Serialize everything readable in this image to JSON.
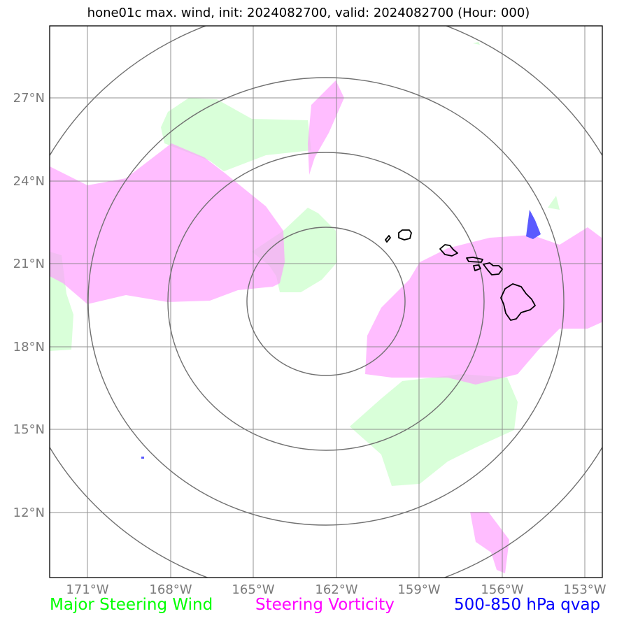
{
  "title": "hone01c max. wind, init: 2024082700, valid: 2024082700 (Hour: 000)",
  "axes": {
    "lat_labels": [
      "27°N",
      "24°N",
      "21°N",
      "18°N",
      "15°N",
      "12°N"
    ],
    "lon_labels": [
      "171°W",
      "168°W",
      "165°W",
      "162°W",
      "159°W",
      "156°W",
      "153°W"
    ]
  },
  "legend": {
    "major_steering_wind": "Major Steering Wind",
    "steering_vorticity": "Steering Vorticity",
    "qvap": "500-850 hPa qvap"
  },
  "colors": {
    "major_steering_wind": "#00ff00",
    "steering_vorticity": "#ff00ff",
    "qvap": "#0000ff",
    "gridlines": "#808080",
    "range_rings": "#707070",
    "coastline": "#000000"
  }
}
